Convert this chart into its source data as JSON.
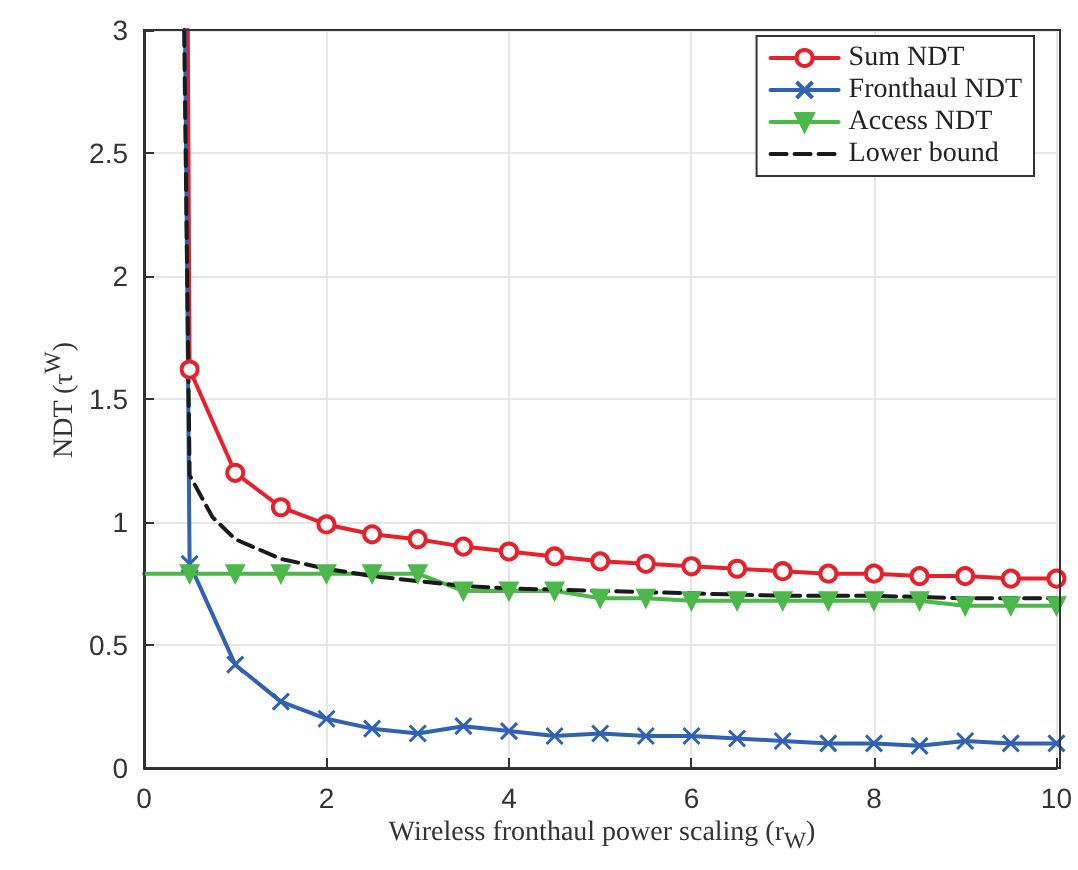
{
  "chart_data": {
    "type": "line",
    "xlabel": "Wireless fronthaul power scaling (r$_{W}$)",
    "ylabel": "NDT (τ$^{W}$)",
    "xlim": [
      0,
      10
    ],
    "ylim": [
      0,
      3
    ],
    "xticks": [
      0,
      2,
      4,
      6,
      8,
      10
    ],
    "yticks": [
      0,
      0.5,
      1,
      1.5,
      2,
      2.5,
      3
    ],
    "grid": true,
    "legend": "top right",
    "series": [
      {
        "name": "Sum NDT",
        "color": "#e8202a",
        "marker": "circle",
        "x": [
          0.48,
          0.5,
          1,
          1.5,
          2,
          2.5,
          3,
          3.5,
          4,
          4.5,
          5,
          5.5,
          6,
          6.5,
          7,
          7.5,
          8,
          8.5,
          9,
          9.5,
          10
        ],
        "values": [
          3,
          1.62,
          1.2,
          1.06,
          0.99,
          0.95,
          0.93,
          0.9,
          0.88,
          0.86,
          0.84,
          0.83,
          0.82,
          0.81,
          0.8,
          0.79,
          0.79,
          0.78,
          0.78,
          0.77,
          0.77
        ]
      },
      {
        "name": "Fronthaul NDT",
        "color": "#2f62b3",
        "marker": "cross",
        "x": [
          0.45,
          0.5,
          1,
          1.5,
          2,
          2.5,
          3,
          3.5,
          4,
          4.5,
          5,
          5.5,
          6,
          6.5,
          7,
          7.5,
          8,
          8.5,
          9,
          9.5,
          10
        ],
        "values": [
          3,
          0.83,
          0.42,
          0.27,
          0.2,
          0.16,
          0.14,
          0.17,
          0.15,
          0.13,
          0.14,
          0.13,
          0.13,
          0.12,
          0.11,
          0.1,
          0.1,
          0.09,
          0.11,
          0.1,
          0.1
        ]
      },
      {
        "name": "Access NDT",
        "color": "#4cb84a",
        "marker": "triangle",
        "x": [
          0,
          0.5,
          1,
          1.5,
          2,
          2.5,
          3,
          3.5,
          4,
          4.5,
          5,
          5.5,
          6,
          6.5,
          7,
          7.5,
          8,
          8.5,
          9,
          9.5,
          10
        ],
        "values": [
          0.79,
          0.79,
          0.79,
          0.79,
          0.79,
          0.79,
          0.79,
          0.72,
          0.72,
          0.72,
          0.69,
          0.69,
          0.68,
          0.68,
          0.68,
          0.68,
          0.68,
          0.68,
          0.66,
          0.66,
          0.66
        ]
      },
      {
        "name": "Lower bound",
        "color": "#1a1a1a",
        "marker": "none",
        "line_style": "dashed",
        "x": [
          0.44,
          0.5,
          0.75,
          1,
          1.5,
          2,
          2.5,
          3,
          3.5,
          4,
          5,
          6,
          7,
          8,
          9,
          10
        ],
        "values": [
          3,
          1.19,
          1.02,
          0.93,
          0.85,
          0.81,
          0.78,
          0.76,
          0.74,
          0.73,
          0.72,
          0.71,
          0.7,
          0.7,
          0.69,
          0.69
        ]
      }
    ]
  }
}
